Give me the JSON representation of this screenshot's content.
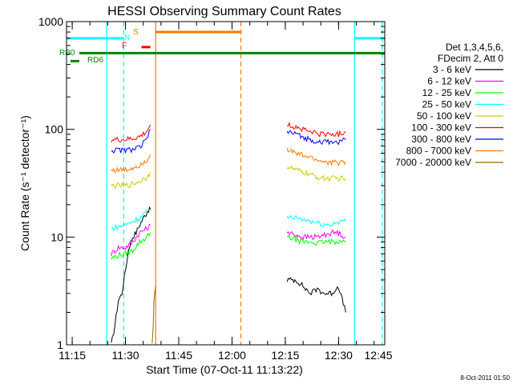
{
  "footer": {
    "timestamp": "8-Oct-2011 01:50"
  },
  "chart_data": {
    "type": "line",
    "title": "HESSI Observing Summary Count Rates",
    "xlabel": "Start Time (07-Oct-11 11:13:22)",
    "ylabel": "Count Rate (s⁻¹ detector⁻¹)",
    "yscale": "log",
    "ylim": [
      1,
      1000
    ],
    "xlim_minutes": [
      673.4,
      763
    ],
    "x_ticks": [
      {
        "label": "11:15",
        "minutes": 675
      },
      {
        "label": "11:30",
        "minutes": 690
      },
      {
        "label": "11:45",
        "minutes": 705
      },
      {
        "label": "12:00",
        "minutes": 720
      },
      {
        "label": "12:15",
        "minutes": 735
      },
      {
        "label": "12:30",
        "minutes": 750
      },
      {
        "label": "12:45",
        "minutes": 765
      }
    ],
    "y_ticks": [
      {
        "label": "1",
        "value": 1
      },
      {
        "label": "10",
        "value": 10
      },
      {
        "label": "100",
        "value": 100
      },
      {
        "label": "1000",
        "value": 1000
      }
    ],
    "legend": {
      "header": [
        "Det 1,3,4,5,6,",
        "FDecim 2, Att 0"
      ],
      "placement": "right"
    },
    "series": [
      {
        "name": "3 - 6 keV",
        "color": "#000000",
        "segments": [
          [
            [
              686,
              1
            ],
            [
              687,
              1.5
            ],
            [
              688,
              2.6
            ],
            [
              689,
              3
            ],
            [
              690,
              5
            ],
            [
              691,
              8
            ],
            [
              691.5,
              9
            ],
            [
              692,
              10
            ],
            [
              693,
              11
            ],
            [
              694,
              13
            ],
            [
              695,
              15
            ],
            [
              696,
              17
            ],
            [
              696.5,
              18
            ],
            [
              697,
              18
            ]
          ],
          [
            [
              735.5,
              4
            ],
            [
              738,
              4
            ],
            [
              740,
              3.5
            ],
            [
              742,
              3
            ],
            [
              744,
              3.3
            ],
            [
              746,
              3
            ],
            [
              748,
              3
            ],
            [
              750,
              3.5
            ],
            [
              752,
              2
            ]
          ]
        ]
      },
      {
        "name": "6 - 12 keV",
        "color": "#ff00ff",
        "segments": [
          [
            [
              686,
              7
            ],
            [
              688,
              8
            ],
            [
              690,
              8
            ],
            [
              692,
              9
            ],
            [
              694,
              11
            ],
            [
              696,
              12
            ],
            [
              697,
              13
            ]
          ],
          [
            [
              735.5,
              11
            ],
            [
              738,
              10.5
            ],
            [
              740,
              10
            ],
            [
              742,
              10
            ],
            [
              744,
              10
            ],
            [
              746,
              10.5
            ],
            [
              748,
              11
            ],
            [
              750,
              11
            ],
            [
              752,
              10
            ]
          ]
        ]
      },
      {
        "name": "12 - 25 keV",
        "color": "#00ff00",
        "segments": [
          [
            [
              686,
              6.3
            ],
            [
              688,
              6.8
            ],
            [
              690,
              7
            ],
            [
              692,
              7.5
            ],
            [
              694,
              9
            ],
            [
              696,
              10
            ],
            [
              697,
              11
            ]
          ],
          [
            [
              735.5,
              10
            ],
            [
              738,
              9.5
            ],
            [
              740,
              9
            ],
            [
              742,
              9
            ],
            [
              744,
              8.8
            ],
            [
              746,
              9
            ],
            [
              748,
              9
            ],
            [
              750,
              9.2
            ],
            [
              752,
              9
            ]
          ]
        ]
      },
      {
        "name": "25 - 50 keV",
        "color": "#00ffff",
        "segments": [
          [
            [
              686,
              12
            ],
            [
              688,
              12.5
            ],
            [
              690,
              13
            ],
            [
              692,
              14
            ],
            [
              694,
              15
            ],
            [
              696,
              17
            ],
            [
              697,
              18
            ]
          ],
          [
            [
              735.5,
              15
            ],
            [
              738,
              15
            ],
            [
              740,
              14.5
            ],
            [
              742,
              14
            ],
            [
              744,
              13.5
            ],
            [
              746,
              13
            ],
            [
              748,
              13
            ],
            [
              750,
              14
            ],
            [
              752,
              14
            ]
          ]
        ]
      },
      {
        "name": "50 - 100 keV",
        "color": "#cccc00",
        "segments": [
          [
            [
              686,
              30
            ],
            [
              688,
              30
            ],
            [
              690,
              30
            ],
            [
              692,
              31
            ],
            [
              694,
              33
            ],
            [
              696,
              36
            ],
            [
              697,
              40
            ]
          ],
          [
            [
              735.5,
              45
            ],
            [
              738,
              42
            ],
            [
              740,
              40
            ],
            [
              742,
              38
            ],
            [
              744,
              36
            ],
            [
              746,
              35
            ],
            [
              748,
              35
            ],
            [
              750,
              35
            ],
            [
              752,
              35
            ]
          ]
        ]
      },
      {
        "name": "100 - 300 keV",
        "color": "#ff0000",
        "segments": [
          [
            [
              686,
              80
            ],
            [
              688,
              80
            ],
            [
              690,
              80
            ],
            [
              692,
              82
            ],
            [
              694,
              85
            ],
            [
              696,
              95
            ],
            [
              697,
              110
            ]
          ],
          [
            [
              735.5,
              110
            ],
            [
              738,
              105
            ],
            [
              740,
              100
            ],
            [
              742,
              95
            ],
            [
              744,
              92
            ],
            [
              746,
              90
            ],
            [
              748,
              90
            ],
            [
              750,
              90
            ],
            [
              752,
              95
            ]
          ]
        ]
      },
      {
        "name": "300 - 800 keV",
        "color": "#0000ff",
        "segments": [
          [
            [
              686,
              64
            ],
            [
              688,
              64
            ],
            [
              690,
              64
            ],
            [
              692,
              65
            ],
            [
              694,
              68
            ],
            [
              696,
              80
            ],
            [
              697,
              100
            ]
          ],
          [
            [
              735.5,
              95
            ],
            [
              738,
              90
            ],
            [
              740,
              85
            ],
            [
              742,
              80
            ],
            [
              744,
              78
            ],
            [
              746,
              76
            ],
            [
              748,
              76
            ],
            [
              750,
              77
            ],
            [
              752,
              80
            ]
          ]
        ]
      },
      {
        "name": "800 - 7000 keV",
        "color": "#ff7700",
        "segments": [
          [
            [
              686,
              42
            ],
            [
              688,
              42
            ],
            [
              690,
              42
            ],
            [
              692,
              44
            ],
            [
              694,
              47
            ],
            [
              696,
              52
            ],
            [
              697,
              58
            ]
          ],
          [
            [
              735.5,
              65
            ],
            [
              738,
              60
            ],
            [
              740,
              57
            ],
            [
              742,
              55
            ],
            [
              744,
              52
            ],
            [
              746,
              50
            ],
            [
              748,
              49
            ],
            [
              750,
              49
            ],
            [
              752,
              50
            ]
          ]
        ]
      },
      {
        "name": "7000 - 20000 keV",
        "color": "#996600",
        "segments": [
          [
            [
              697.5,
              1
            ],
            [
              697.8,
              1.5
            ],
            [
              698,
              2.5
            ],
            [
              698.5,
              3.5
            ]
          ]
        ]
      }
    ],
    "annotations": [
      {
        "text": "N",
        "color": "#00ffff"
      },
      {
        "text": "S",
        "color": "#ff7700"
      },
      {
        "text": "F",
        "color": "#ff0000"
      },
      {
        "text": "RB0",
        "color": "#008800"
      },
      {
        "text": "RD6",
        "color": "#008800"
      }
    ],
    "flag_bars": [
      {
        "label": "N",
        "color": "#00ffff",
        "level": 700,
        "segments": [
          [
            673.4,
            689.5
          ],
          [
            754.5,
            763
          ]
        ]
      },
      {
        "label": "S",
        "color": "#ff7700",
        "level": 800,
        "segments": [
          [
            698.5,
            722.5
          ]
        ]
      },
      {
        "label": "F",
        "color": "#ff0000",
        "level": 580,
        "segments": [
          [
            694.5,
            697
          ]
        ]
      },
      {
        "label": "RB0",
        "color": "#008800",
        "level": 510,
        "segments": [
          [
            677,
            763
          ]
        ]
      },
      {
        "label": "RD6",
        "color": "#008800",
        "level": 430,
        "segments": [
          [
            674.5,
            677
          ]
        ]
      }
    ],
    "vertical_lines": [
      {
        "color": "#00ffff",
        "style": "solid",
        "x": 684.7
      },
      {
        "color": "#00ffff",
        "style": "dashed",
        "x": 689.5
      },
      {
        "color": "#00ffff",
        "style": "solid",
        "x": 754.5
      },
      {
        "color": "#00ffff",
        "style": "dashed",
        "x": 762.3
      },
      {
        "color": "#ff7700",
        "style": "solid",
        "x": 698.5
      },
      {
        "color": "#ff7700",
        "style": "dashed",
        "x": 722.5
      }
    ]
  }
}
